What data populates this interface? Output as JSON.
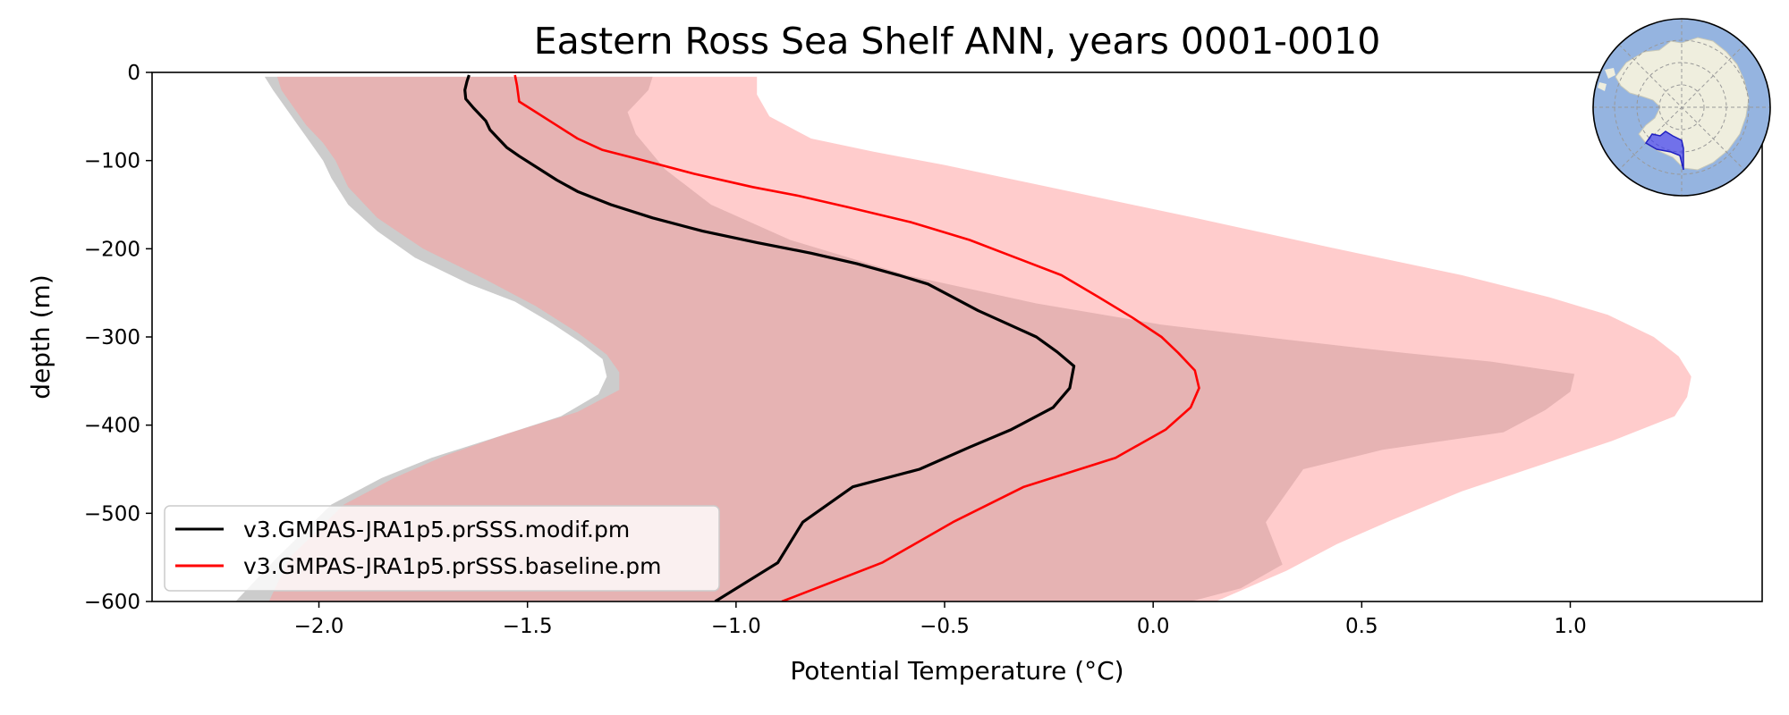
{
  "chart_data": {
    "type": "line",
    "title": "Eastern Ross Sea Shelf ANN, years 0001-0010",
    "xlabel": "Potential Temperature (°C)",
    "ylabel": "depth (m)",
    "xlim": [
      -2.4,
      1.46
    ],
    "ylim": [
      -600,
      0
    ],
    "xticks": [
      -2.0,
      -1.5,
      -1.0,
      -0.5,
      0.0,
      0.5,
      1.0
    ],
    "xtick_labels": [
      "−2.0",
      "−1.5",
      "−1.0",
      "−0.5",
      "0.0",
      "0.5",
      "1.0"
    ],
    "yticks": [
      0,
      -100,
      -200,
      -300,
      -400,
      -500,
      -600
    ],
    "ytick_labels": [
      "0",
      "−100",
      "−200",
      "−300",
      "−400",
      "−500",
      "−600"
    ],
    "legend_location": "lower-left",
    "series": [
      {
        "name": "v3.GMPAS-JRA1p5.prSSS.modif.pm",
        "color": "#000000",
        "band_color": "#808080",
        "points": [
          [
            -1.64,
            -3
          ],
          [
            -1.645,
            -10
          ],
          [
            -1.65,
            -20
          ],
          [
            -1.648,
            -30
          ],
          [
            -1.63,
            -40
          ],
          [
            -1.6,
            -55
          ],
          [
            -1.59,
            -65
          ],
          [
            -1.57,
            -75
          ],
          [
            -1.55,
            -85
          ],
          [
            -1.52,
            -95
          ],
          [
            -1.47,
            -110
          ],
          [
            -1.43,
            -122
          ],
          [
            -1.38,
            -135
          ],
          [
            -1.3,
            -150
          ],
          [
            -1.2,
            -165
          ],
          [
            -1.08,
            -180
          ],
          [
            -0.95,
            -193
          ],
          [
            -0.82,
            -205
          ],
          [
            -0.71,
            -217
          ],
          [
            -0.61,
            -230
          ],
          [
            -0.54,
            -240
          ],
          [
            -0.48,
            -255
          ],
          [
            -0.42,
            -270
          ],
          [
            -0.35,
            -285
          ],
          [
            -0.28,
            -300
          ],
          [
            -0.23,
            -317
          ],
          [
            -0.19,
            -333
          ],
          [
            -0.2,
            -358
          ],
          [
            -0.24,
            -380
          ],
          [
            -0.34,
            -405
          ],
          [
            -0.44,
            -425
          ],
          [
            -0.56,
            -450
          ],
          [
            -0.72,
            -470
          ],
          [
            -0.84,
            -510
          ],
          [
            -0.9,
            -556
          ],
          [
            -1.05,
            -600
          ]
        ],
        "band_lower": [
          [
            -2.13,
            -5
          ],
          [
            -2.11,
            -20
          ],
          [
            -2.08,
            -40
          ],
          [
            -2.05,
            -60
          ],
          [
            -2.02,
            -80
          ],
          [
            -1.99,
            -100
          ],
          [
            -1.97,
            -120
          ],
          [
            -1.93,
            -150
          ],
          [
            -1.86,
            -180
          ],
          [
            -1.77,
            -210
          ],
          [
            -1.64,
            -240
          ],
          [
            -1.53,
            -260
          ],
          [
            -1.44,
            -285
          ],
          [
            -1.37,
            -307
          ],
          [
            -1.32,
            -325
          ],
          [
            -1.31,
            -345
          ],
          [
            -1.33,
            -365
          ],
          [
            -1.42,
            -390
          ],
          [
            -1.57,
            -413
          ],
          [
            -1.73,
            -437
          ],
          [
            -1.85,
            -460
          ],
          [
            -1.97,
            -490
          ],
          [
            -2.1,
            -550
          ],
          [
            -2.2,
            -600
          ]
        ],
        "band_upper": [
          [
            -1.2,
            -5
          ],
          [
            -1.21,
            -20
          ],
          [
            -1.26,
            -45
          ],
          [
            -1.24,
            -70
          ],
          [
            -1.17,
            -110
          ],
          [
            -1.06,
            -150
          ],
          [
            -0.87,
            -190
          ],
          [
            -0.59,
            -230
          ],
          [
            -0.28,
            -262
          ],
          [
            0.02,
            -286
          ],
          [
            0.32,
            -303
          ],
          [
            0.6,
            -318
          ],
          [
            0.81,
            -328
          ],
          [
            1.01,
            -342
          ],
          [
            1.0,
            -362
          ],
          [
            0.94,
            -383
          ],
          [
            0.84,
            -408
          ],
          [
            0.55,
            -428
          ],
          [
            0.36,
            -450
          ],
          [
            0.27,
            -510
          ],
          [
            0.31,
            -558
          ],
          [
            0.21,
            -585
          ],
          [
            0.09,
            -600
          ]
        ]
      },
      {
        "name": "v3.GMPAS-JRA1p5.prSSS.baseline.pm",
        "color": "#ff0000",
        "band_color": "#ff9999",
        "points": [
          [
            -1.53,
            -3
          ],
          [
            -1.525,
            -15
          ],
          [
            -1.52,
            -33
          ],
          [
            -1.48,
            -45
          ],
          [
            -1.43,
            -60
          ],
          [
            -1.38,
            -75
          ],
          [
            -1.32,
            -88
          ],
          [
            -1.22,
            -100
          ],
          [
            -1.1,
            -115
          ],
          [
            -0.96,
            -130
          ],
          [
            -0.85,
            -140
          ],
          [
            -0.73,
            -153
          ],
          [
            -0.58,
            -170
          ],
          [
            -0.44,
            -190
          ],
          [
            -0.33,
            -210
          ],
          [
            -0.22,
            -230
          ],
          [
            -0.13,
            -255
          ],
          [
            -0.05,
            -278
          ],
          [
            0.02,
            -300
          ],
          [
            0.06,
            -318
          ],
          [
            0.1,
            -338
          ],
          [
            0.11,
            -358
          ],
          [
            0.09,
            -380
          ],
          [
            0.03,
            -405
          ],
          [
            -0.09,
            -437
          ],
          [
            -0.31,
            -470
          ],
          [
            -0.48,
            -510
          ],
          [
            -0.65,
            -556
          ],
          [
            -0.89,
            -600
          ]
        ],
        "band_lower": [
          [
            -2.1,
            -5
          ],
          [
            -2.09,
            -20
          ],
          [
            -2.06,
            -40
          ],
          [
            -2.03,
            -60
          ],
          [
            -1.99,
            -80
          ],
          [
            -1.96,
            -100
          ],
          [
            -1.93,
            -130
          ],
          [
            -1.86,
            -165
          ],
          [
            -1.75,
            -200
          ],
          [
            -1.6,
            -235
          ],
          [
            -1.48,
            -265
          ],
          [
            -1.38,
            -295
          ],
          [
            -1.31,
            -320
          ],
          [
            -1.28,
            -340
          ],
          [
            -1.28,
            -360
          ],
          [
            -1.38,
            -385
          ],
          [
            -1.55,
            -410
          ],
          [
            -1.7,
            -435
          ],
          [
            -1.82,
            -460
          ],
          [
            -1.94,
            -490
          ],
          [
            -2.07,
            -550
          ],
          [
            -2.12,
            -600
          ]
        ],
        "band_upper": [
          [
            -0.95,
            -5
          ],
          [
            -0.95,
            -25
          ],
          [
            -0.92,
            -50
          ],
          [
            -0.82,
            -75
          ],
          [
            -0.67,
            -90
          ],
          [
            -0.5,
            -105
          ],
          [
            -0.25,
            -130
          ],
          [
            0.1,
            -165
          ],
          [
            0.42,
            -198
          ],
          [
            0.74,
            -230
          ],
          [
            0.95,
            -255
          ],
          [
            1.09,
            -275
          ],
          [
            1.2,
            -300
          ],
          [
            1.26,
            -322
          ],
          [
            1.29,
            -345
          ],
          [
            1.28,
            -368
          ],
          [
            1.25,
            -390
          ],
          [
            1.1,
            -418
          ],
          [
            0.93,
            -445
          ],
          [
            0.74,
            -475
          ],
          [
            0.57,
            -508
          ],
          [
            0.44,
            -535
          ],
          [
            0.32,
            -565
          ],
          [
            0.15,
            -600
          ]
        ]
      }
    ]
  },
  "inset_map": {
    "name": "antarctica-locator-map",
    "ocean_color": "#95b4e0",
    "land_color": "#efeede",
    "region_color": "#3c3cf0"
  }
}
